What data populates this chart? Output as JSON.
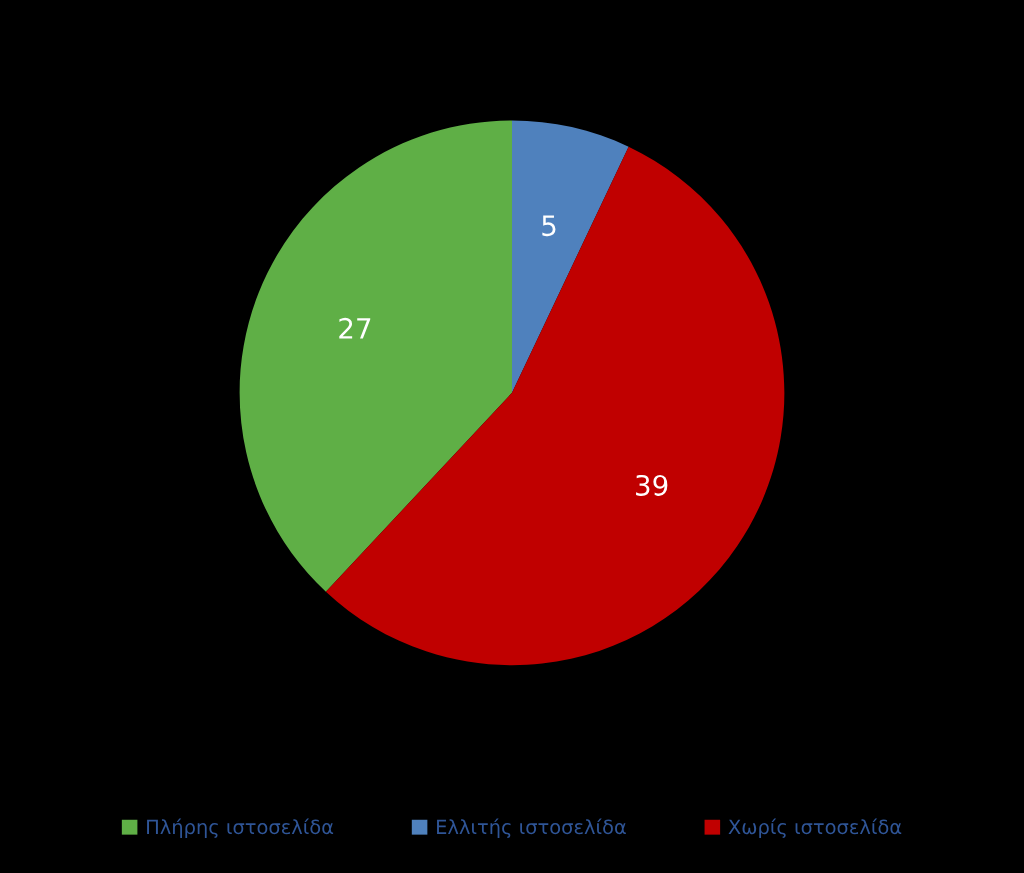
{
  "chart_data": {
    "type": "pie",
    "categories": [
      "Πλήρης ιστοσελίδα",
      "Ελλιτής ιστοσελίδα",
      "Χωρίς ιστοσελίδα"
    ],
    "values": [
      27,
      5,
      39
    ],
    "colors": [
      "#5faf46",
      "#4f81bd",
      "#c00000"
    ],
    "data_labels": true,
    "legend": "bottom"
  }
}
